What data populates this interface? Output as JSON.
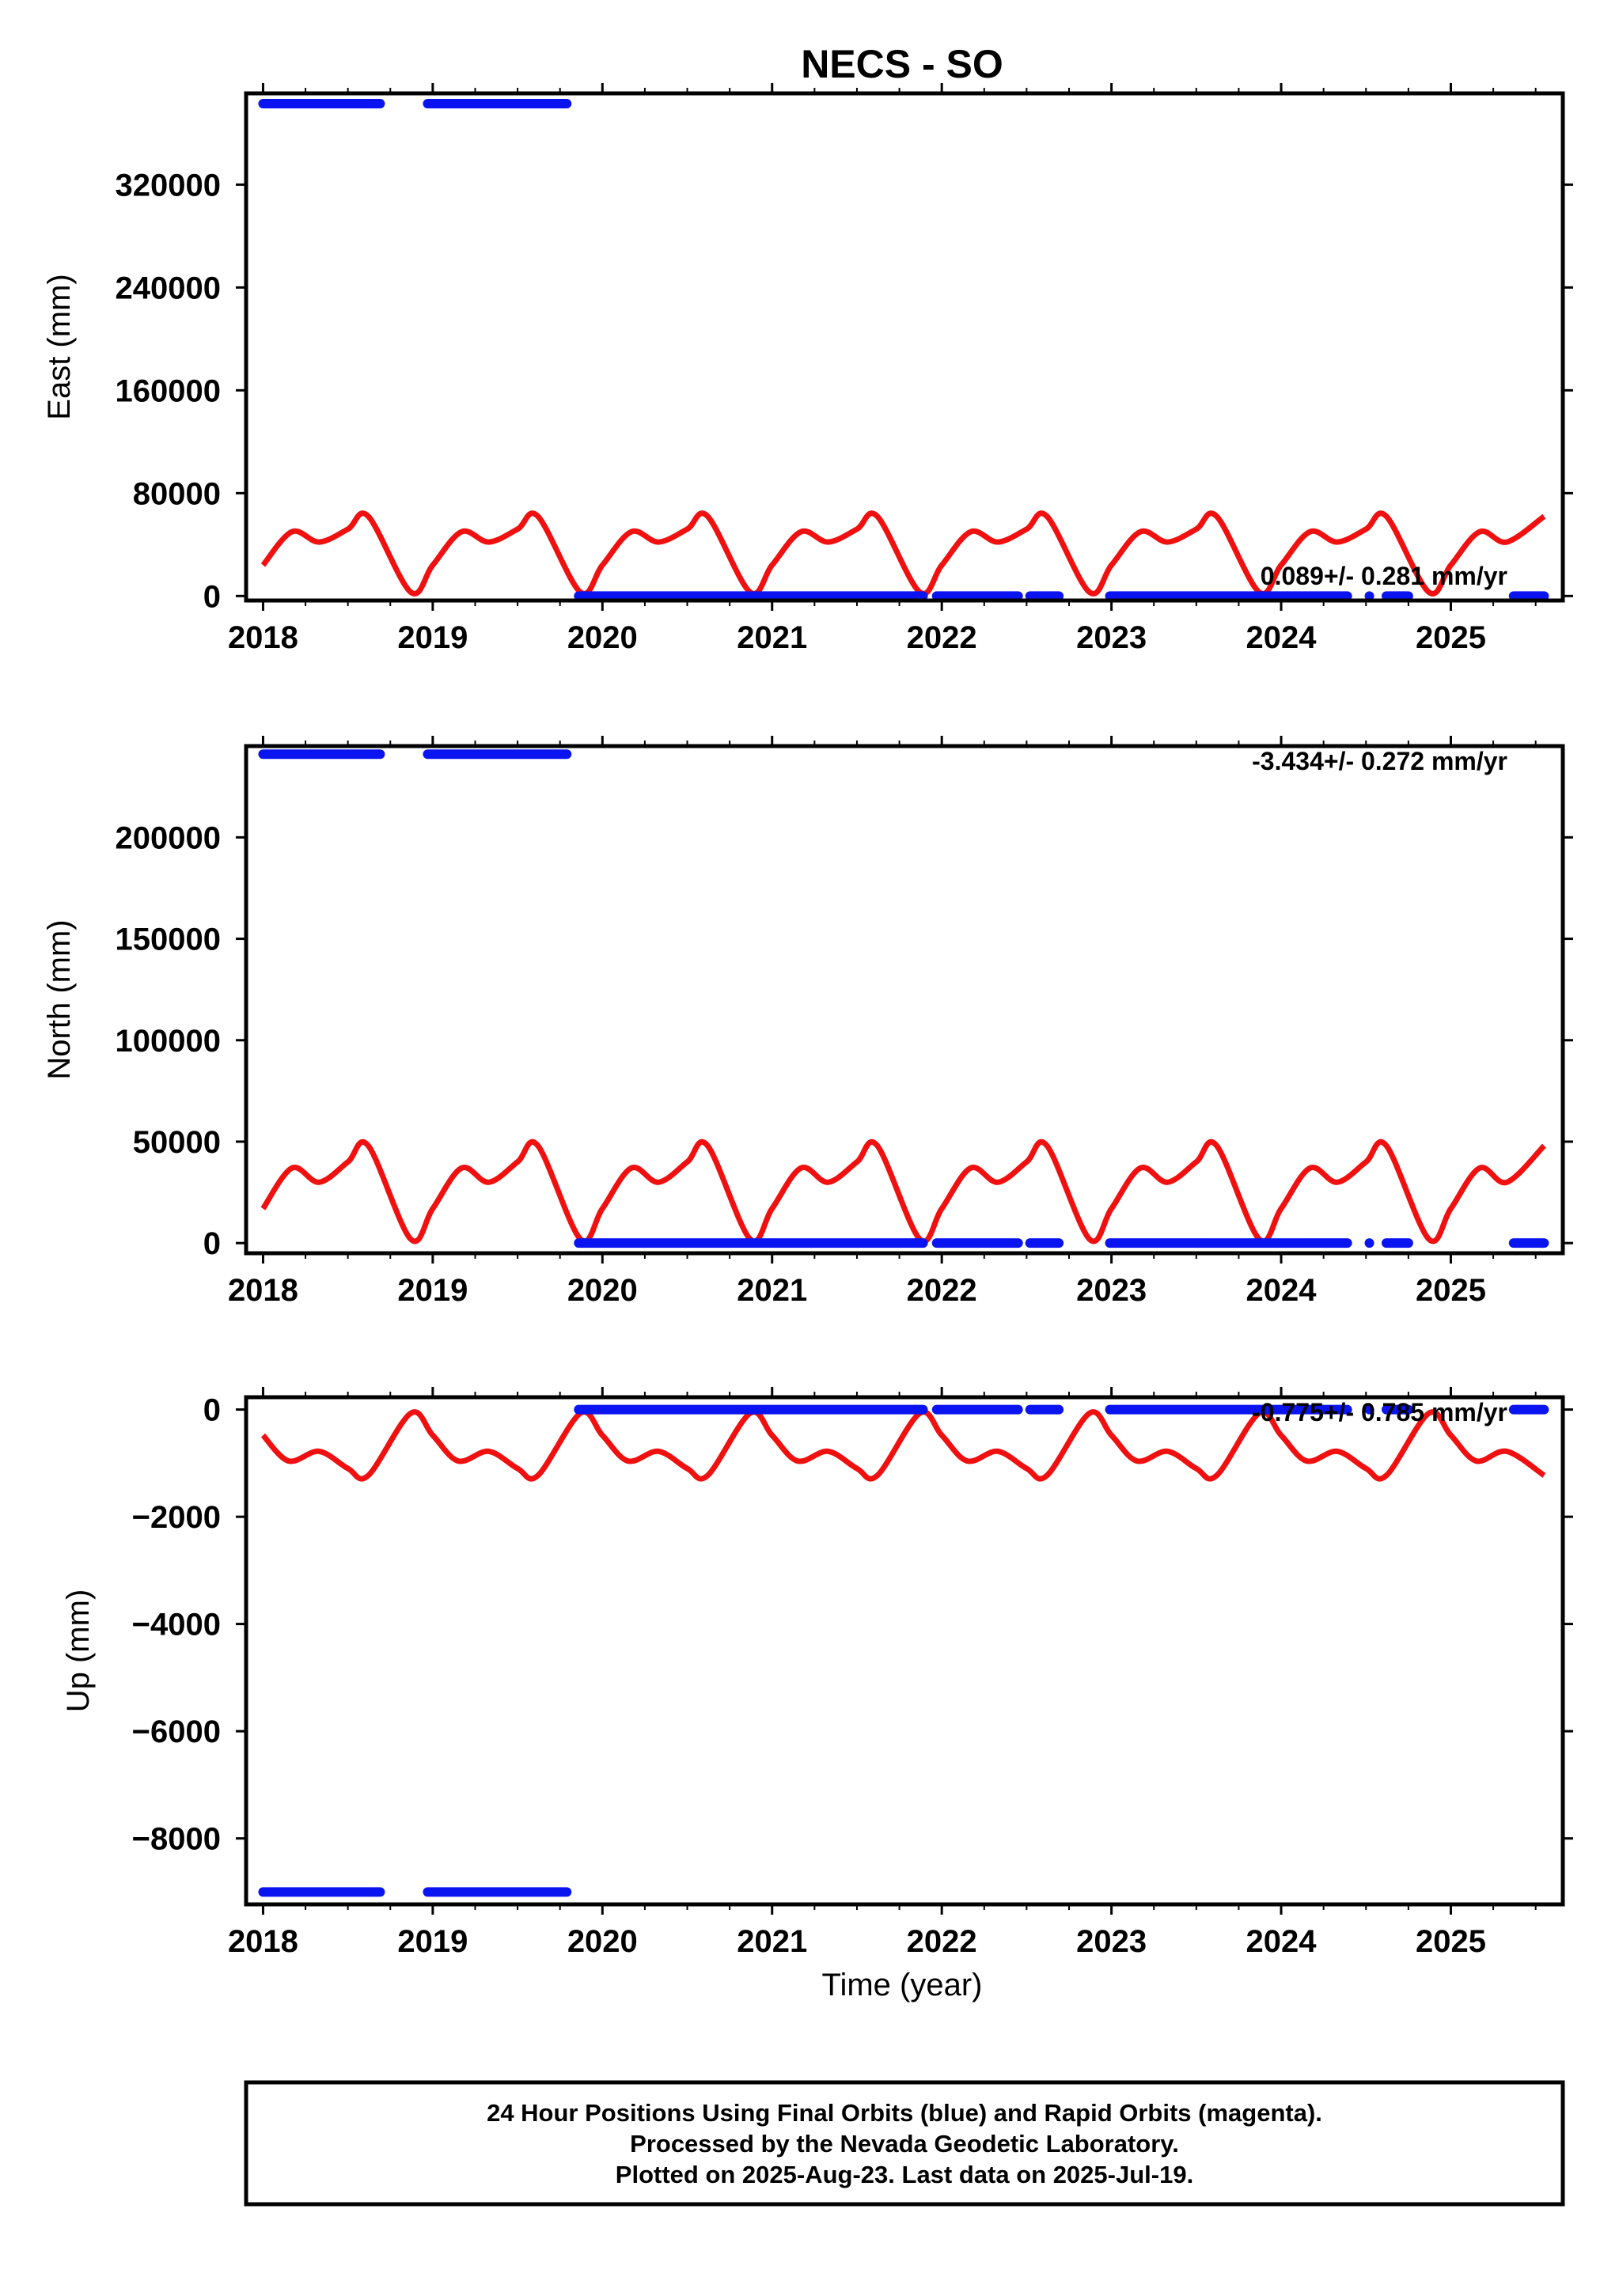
{
  "title": "NECS - SO",
  "xlabel": "Time (year)",
  "footer": {
    "line1": "24 Hour Positions Using Final Orbits (blue) and Rapid Orbits (magenta).",
    "line2": "Processed by the Nevada Geodetic Laboratory.",
    "line3": "Plotted on 2025-Aug-23. Last data on 2025-Jul-19."
  },
  "colors": {
    "data": "#0a14f0",
    "model": "#f01010",
    "frame": "#000000"
  },
  "chart_data": [
    {
      "type": "scatter",
      "component": "East",
      "ylabel": "East (mm)",
      "rate_label": "0.089+/- 0.281 mm/yr",
      "xlim": [
        2017.9,
        2025.66
      ],
      "ylim": [
        -3500,
        391000
      ],
      "xticks": [
        2018,
        2019,
        2020,
        2021,
        2022,
        2023,
        2024,
        2025
      ],
      "yticks": [
        0,
        80000,
        160000,
        240000,
        320000
      ],
      "ytick_labels": [
        "0",
        "80000",
        "160000",
        "240000",
        "320000"
      ],
      "grid": false,
      "series": [
        {
          "role": "data",
          "segments": [
            {
              "x_start": 2018.0,
              "x_end": 2018.69,
              "y": 383000
            },
            {
              "x_start": 2018.97,
              "x_end": 2019.79,
              "y": 383000
            },
            {
              "x_start": 2019.86,
              "x_end": 2021.89,
              "y": 0
            },
            {
              "x_start": 2021.97,
              "x_end": 2022.45,
              "y": 0
            },
            {
              "x_start": 2022.52,
              "x_end": 2022.69,
              "y": 0
            },
            {
              "x_start": 2022.99,
              "x_end": 2024.39,
              "y": 0
            },
            {
              "x_start": 2024.62,
              "x_end": 2024.75,
              "y": 0
            },
            {
              "x_start": 2025.37,
              "x_end": 2025.55,
              "y": 0
            }
          ],
          "isolated_points": [
            {
              "x": 2021.84,
              "y": 0
            },
            {
              "x": 2024.52,
              "y": 0
            }
          ]
        },
        {
          "role": "model",
          "x": [
            2018.0,
            2018.17,
            2018.33,
            2018.5,
            2018.62,
            2018.87,
            2019.0,
            2019.17,
            2019.33,
            2019.5,
            2019.62,
            2019.87,
            2020.0,
            2020.17,
            2020.33,
            2020.5,
            2020.62,
            2020.87,
            2021.0,
            2021.17,
            2021.33,
            2021.5,
            2021.62,
            2021.87,
            2022.0,
            2022.17,
            2022.33,
            2022.5,
            2022.62,
            2022.87,
            2023.0,
            2023.17,
            2023.33,
            2023.5,
            2023.62,
            2023.87,
            2024.0,
            2024.17,
            2024.33,
            2024.5,
            2024.62,
            2024.87,
            2025.0,
            2025.17,
            2025.33,
            2025.55
          ],
          "y": [
            24000,
            50000,
            42000,
            52000,
            62000,
            3000,
            24000,
            50000,
            42000,
            52000,
            62000,
            3000,
            24000,
            50000,
            42000,
            52000,
            62000,
            3000,
            24000,
            50000,
            42000,
            52000,
            62000,
            3000,
            24000,
            50000,
            42000,
            52000,
            62000,
            3000,
            24000,
            50000,
            42000,
            52000,
            62000,
            3000,
            24000,
            50000,
            42000,
            52000,
            62000,
            3000,
            24000,
            50000,
            42000,
            62000
          ]
        }
      ]
    },
    {
      "type": "scatter",
      "component": "North",
      "ylabel": "North (mm)",
      "rate_label": "-3.434+/- 0.272 mm/yr",
      "xlim": [
        2017.9,
        2025.66
      ],
      "ylim": [
        -5000,
        245000
      ],
      "xticks": [
        2018,
        2019,
        2020,
        2021,
        2022,
        2023,
        2024,
        2025
      ],
      "yticks": [
        0,
        50000,
        100000,
        150000,
        200000
      ],
      "ytick_labels": [
        "0",
        "50000",
        "100000",
        "150000",
        "200000"
      ],
      "grid": false,
      "series": [
        {
          "role": "data",
          "segments": [
            {
              "x_start": 2018.0,
              "x_end": 2018.69,
              "y": 241000
            },
            {
              "x_start": 2018.97,
              "x_end": 2019.79,
              "y": 241000
            },
            {
              "x_start": 2019.86,
              "x_end": 2021.89,
              "y": 0
            },
            {
              "x_start": 2021.97,
              "x_end": 2022.45,
              "y": 0
            },
            {
              "x_start": 2022.52,
              "x_end": 2022.69,
              "y": 0
            },
            {
              "x_start": 2022.99,
              "x_end": 2024.39,
              "y": 0
            },
            {
              "x_start": 2024.62,
              "x_end": 2024.75,
              "y": 0
            },
            {
              "x_start": 2025.37,
              "x_end": 2025.55,
              "y": 0
            }
          ],
          "isolated_points": [
            {
              "x": 2021.84,
              "y": 0
            },
            {
              "x": 2024.52,
              "y": 0
            }
          ]
        },
        {
          "role": "model",
          "x": [
            2018.0,
            2018.17,
            2018.33,
            2018.5,
            2018.62,
            2018.87,
            2019.0,
            2019.17,
            2019.33,
            2019.5,
            2019.62,
            2019.87,
            2020.0,
            2020.17,
            2020.33,
            2020.5,
            2020.62,
            2020.87,
            2021.0,
            2021.17,
            2021.33,
            2021.5,
            2021.62,
            2021.87,
            2022.0,
            2022.17,
            2022.33,
            2022.5,
            2022.62,
            2022.87,
            2023.0,
            2023.17,
            2023.33,
            2023.5,
            2023.62,
            2023.87,
            2024.0,
            2024.17,
            2024.33,
            2024.5,
            2024.62,
            2024.87,
            2025.0,
            2025.17,
            2025.33,
            2025.55
          ],
          "y": [
            17000,
            37000,
            30000,
            40000,
            48000,
            2000,
            17000,
            37000,
            30000,
            40000,
            48000,
            2000,
            17000,
            37000,
            30000,
            40000,
            48000,
            2000,
            17000,
            37000,
            30000,
            40000,
            48000,
            2000,
            17000,
            37000,
            30000,
            40000,
            48000,
            2000,
            17000,
            37000,
            30000,
            40000,
            48000,
            2000,
            17000,
            37000,
            30000,
            40000,
            48000,
            2000,
            17000,
            37000,
            30000,
            48000
          ]
        }
      ]
    },
    {
      "type": "scatter",
      "component": "Up",
      "ylabel": "Up (mm)",
      "rate_label": "-0.775+/- 0.785 mm/yr",
      "xlim": [
        2017.9,
        2025.66
      ],
      "ylim": [
        -9230,
        230
      ],
      "xticks": [
        2018,
        2019,
        2020,
        2021,
        2022,
        2023,
        2024,
        2025
      ],
      "yticks": [
        0,
        -2000,
        -4000,
        -6000,
        -8000
      ],
      "ytick_labels": [
        "0",
        "−2000",
        "−4000",
        "−6000",
        "−8000"
      ],
      "grid": false,
      "series": [
        {
          "role": "data",
          "segments": [
            {
              "x_start": 2018.0,
              "x_end": 2018.69,
              "y": -9000
            },
            {
              "x_start": 2018.97,
              "x_end": 2019.79,
              "y": -9000
            },
            {
              "x_start": 2019.86,
              "x_end": 2021.89,
              "y": 0
            },
            {
              "x_start": 2021.97,
              "x_end": 2022.45,
              "y": 0
            },
            {
              "x_start": 2022.52,
              "x_end": 2022.69,
              "y": 0
            },
            {
              "x_start": 2022.99,
              "x_end": 2024.39,
              "y": 0
            },
            {
              "x_start": 2024.62,
              "x_end": 2024.75,
              "y": 0
            },
            {
              "x_start": 2025.37,
              "x_end": 2025.55,
              "y": 0
            }
          ],
          "isolated_points": [
            {
              "x": 2021.84,
              "y": 0
            },
            {
              "x": 2024.52,
              "y": 0
            }
          ]
        },
        {
          "role": "model",
          "x": [
            2018.0,
            2018.15,
            2018.33,
            2018.5,
            2018.62,
            2018.87,
            2019.0,
            2019.15,
            2019.33,
            2019.5,
            2019.62,
            2019.87,
            2020.0,
            2020.15,
            2020.33,
            2020.5,
            2020.62,
            2020.87,
            2021.0,
            2021.15,
            2021.33,
            2021.5,
            2021.62,
            2021.87,
            2022.0,
            2022.15,
            2022.33,
            2022.5,
            2022.62,
            2022.87,
            2023.0,
            2023.15,
            2023.33,
            2023.5,
            2023.62,
            2023.87,
            2024.0,
            2024.15,
            2024.33,
            2024.5,
            2024.62,
            2024.87,
            2025.0,
            2025.15,
            2025.33,
            2025.55
          ],
          "y": [
            -480,
            -960,
            -780,
            -1100,
            -1230,
            -70,
            -480,
            -960,
            -780,
            -1100,
            -1230,
            -70,
            -480,
            -960,
            -780,
            -1100,
            -1230,
            -70,
            -480,
            -960,
            -780,
            -1100,
            -1230,
            -70,
            -480,
            -960,
            -780,
            -1100,
            -1230,
            -70,
            -480,
            -960,
            -780,
            -1100,
            -1230,
            -70,
            -480,
            -960,
            -780,
            -1100,
            -1230,
            -70,
            -480,
            -960,
            -780,
            -1230
          ]
        }
      ]
    }
  ]
}
